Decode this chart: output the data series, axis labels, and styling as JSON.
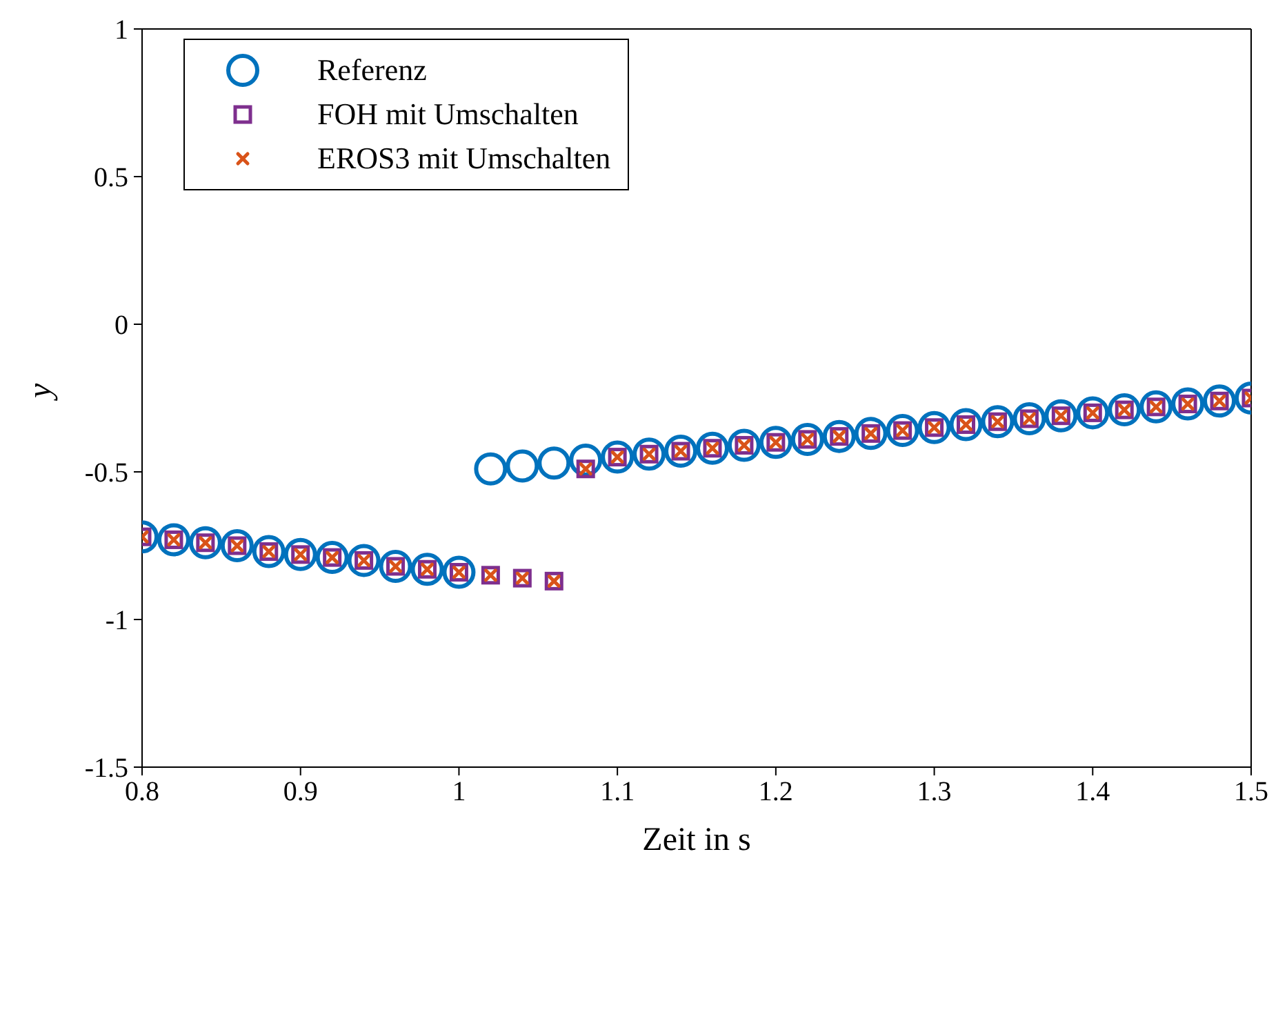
{
  "chart_data": {
    "type": "scatter",
    "xlabel": "Zeit in s",
    "ylabel": "y",
    "x": [
      0.8,
      0.82,
      0.84,
      0.86,
      0.88,
      0.9,
      0.92,
      0.94,
      0.96,
      0.98,
      1.0,
      1.02,
      1.04,
      1.06,
      1.08,
      1.1,
      1.12,
      1.14,
      1.16,
      1.18,
      1.2,
      1.22,
      1.24,
      1.26,
      1.28,
      1.3,
      1.32,
      1.34,
      1.36,
      1.38,
      1.4,
      1.42,
      1.44,
      1.46,
      1.48,
      1.5
    ],
    "series": [
      {
        "name": "Referenz",
        "color": "#0072bd",
        "marker": "circle",
        "values": [
          -0.72,
          -0.73,
          -0.74,
          -0.75,
          -0.77,
          -0.78,
          -0.79,
          -0.8,
          -0.82,
          -0.83,
          -0.84,
          -0.49,
          -0.48,
          -0.47,
          -0.46,
          -0.45,
          -0.44,
          -0.43,
          -0.42,
          -0.41,
          -0.4,
          -0.39,
          -0.38,
          -0.37,
          -0.36,
          -0.35,
          -0.34,
          -0.33,
          -0.32,
          -0.31,
          -0.3,
          -0.29,
          -0.28,
          -0.27,
          -0.26,
          -0.25
        ]
      },
      {
        "name": "FOH mit Umschalten",
        "color": "#7e2f8e",
        "marker": "square",
        "values": [
          -0.72,
          -0.73,
          -0.74,
          -0.75,
          -0.77,
          -0.78,
          -0.79,
          -0.8,
          -0.82,
          -0.83,
          -0.84,
          -0.85,
          -0.86,
          -0.87,
          -0.49,
          -0.45,
          -0.44,
          -0.43,
          -0.42,
          -0.41,
          -0.4,
          -0.39,
          -0.38,
          -0.37,
          -0.36,
          -0.35,
          -0.34,
          -0.33,
          -0.32,
          -0.31,
          -0.3,
          -0.29,
          -0.28,
          -0.27,
          -0.26,
          -0.25
        ]
      },
      {
        "name": "EROS3 mit Umschalten",
        "color": "#d95319",
        "marker": "cross",
        "values": [
          -0.72,
          -0.73,
          -0.74,
          -0.75,
          -0.77,
          -0.78,
          -0.79,
          -0.8,
          -0.82,
          -0.83,
          -0.84,
          -0.85,
          -0.86,
          -0.87,
          -0.49,
          -0.45,
          -0.44,
          -0.43,
          -0.42,
          -0.41,
          -0.4,
          -0.39,
          -0.38,
          -0.37,
          -0.36,
          -0.35,
          -0.34,
          -0.33,
          -0.32,
          -0.31,
          -0.3,
          -0.29,
          -0.28,
          -0.27,
          -0.26,
          -0.25
        ]
      }
    ],
    "xlim": [
      0.8,
      1.5
    ],
    "xticks": [
      0.8,
      0.9,
      1,
      1.1,
      1.2,
      1.3,
      1.4,
      1.5
    ],
    "ylim": [
      -1.5,
      1
    ],
    "yticks": [
      -1.5,
      -1,
      -0.5,
      0,
      0.5,
      1
    ],
    "grid": false,
    "legend": "top left"
  }
}
